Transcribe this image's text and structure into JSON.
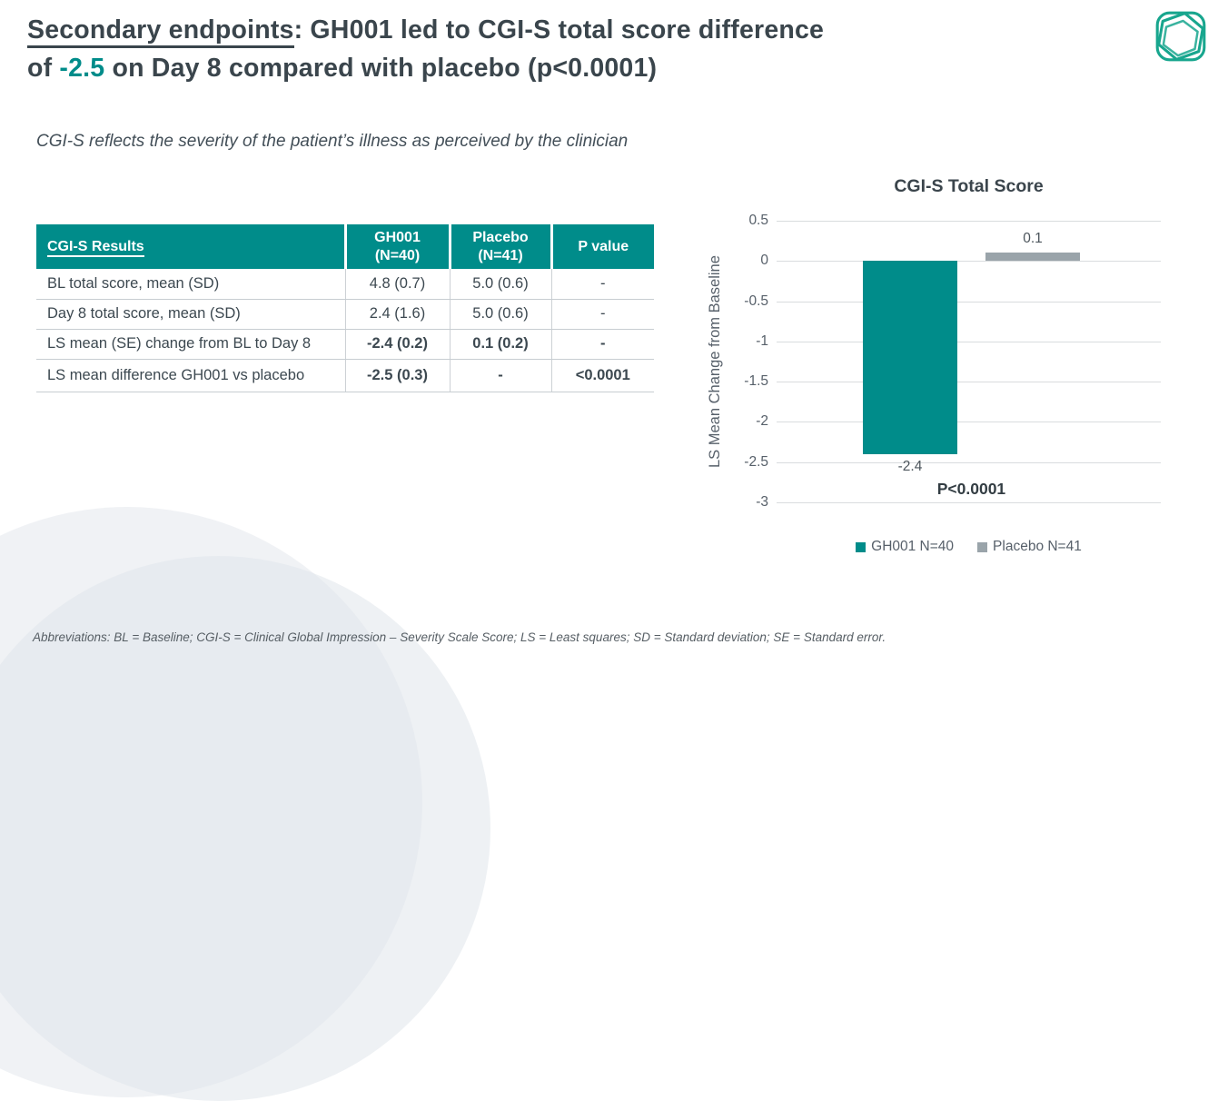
{
  "title": {
    "underlined": "Secondary endpoints",
    "rest_line1": ": GH001 led to CGI-S total score difference",
    "line2_prefix": "of ",
    "highlight": "-2.5",
    "line2_suffix": " on Day 8 compared with placebo (p<0.0001)"
  },
  "subtitle": "CGI-S reflects the severity of the patient’s illness as perceived by the clinician",
  "logo": {
    "icon": "hexagon-in-rounded-square",
    "color": "#18a68e"
  },
  "table": {
    "headers": [
      {
        "lines": [
          "CGI-S Results"
        ],
        "underline": true
      },
      {
        "lines": [
          "GH001",
          "(N=40)"
        ],
        "underline": false
      },
      {
        "lines": [
          "Placebo",
          "(N=41)"
        ],
        "underline": false
      },
      {
        "lines": [
          "P value"
        ],
        "underline": false
      }
    ],
    "rows": [
      {
        "cells": [
          "BL total score, mean (SD)",
          "4.8 (0.7)",
          "5.0 (0.6)",
          "-"
        ],
        "bold_values": false
      },
      {
        "cells": [
          "Day 8 total score, mean (SD)",
          "2.4 (1.6)",
          "5.0 (0.6)",
          "-"
        ],
        "bold_values": false
      },
      {
        "cells": [
          "LS mean (SE) change from BL to Day 8",
          "-2.4 (0.2)",
          "0.1 (0.2)",
          "-"
        ],
        "bold_values": true
      },
      {
        "cells": [
          "LS mean difference GH001 vs placebo",
          "-2.5 (0.3)",
          "-",
          "<0.0001"
        ],
        "bold_values": true
      }
    ]
  },
  "chart_data": {
    "type": "bar",
    "title": "CGI-S Total Score",
    "ylabel": "LS Mean Change from Baseline",
    "ylim": [
      -3,
      0.5
    ],
    "yticks": [
      {
        "v": 0.5,
        "label": "0.5"
      },
      {
        "v": 0,
        "label": "0"
      },
      {
        "v": -0.5,
        "label": "-0.5"
      },
      {
        "v": -1,
        "label": "-1"
      },
      {
        "v": -1.5,
        "label": "-1.5"
      },
      {
        "v": -2,
        "label": "-2"
      },
      {
        "v": -2.5,
        "label": "-2.5"
      },
      {
        "v": -3,
        "label": "-3"
      }
    ],
    "grid": true,
    "legend_position": "bottom",
    "series": [
      {
        "name": "GH001 N=40",
        "value": -2.4,
        "label": "-2.4",
        "color": "#008c8a"
      },
      {
        "name": "Placebo N=41",
        "value": 0.1,
        "label": "0.1",
        "color": "#9aa4aa"
      }
    ],
    "annotation": "P<0.0001"
  },
  "footer": "Abbreviations: BL = Baseline; CGI-S = Clinical Global Impression – Severity Scale Score; LS = Least squares; SD = Standard deviation; SE = Standard error.",
  "colors": {
    "accent_teal": "#008c8a",
    "logo_teal": "#18a68e",
    "bar_gray": "#9aa4aa",
    "title_text": "#3a454c",
    "gridline": "#d9dcde"
  }
}
